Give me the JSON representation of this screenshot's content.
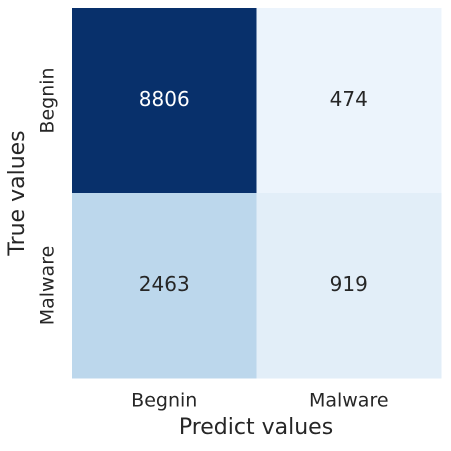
{
  "chart_data": {
    "type": "heatmap",
    "x_categories": [
      "Begnin",
      "Malware"
    ],
    "y_categories": [
      "Begnin",
      "Malware"
    ],
    "values": [
      [
        8806,
        474
      ],
      [
        2463,
        919
      ]
    ],
    "colormap": "Blues",
    "xlabel": "Predict values",
    "ylabel": "True values"
  }
}
